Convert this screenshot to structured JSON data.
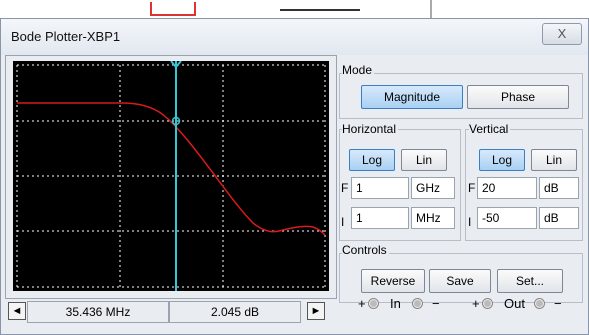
{
  "window": {
    "title": "Bode Plotter-XBP1",
    "close_label": "X"
  },
  "plot": {
    "background": "#000000",
    "curve_color": "#d81b1b",
    "cursor_color": "#35c5d6",
    "grid_color": "#ffffff"
  },
  "readout": {
    "frequency": "35.436 MHz",
    "gain": "2.045 dB",
    "left_arrow": "◄",
    "right_arrow": "►"
  },
  "mode": {
    "label": "Mode",
    "magnitude_label": "Magnitude",
    "phase_label": "Phase",
    "selected": "Magnitude"
  },
  "horizontal": {
    "label": "Horizontal",
    "log_label": "Log",
    "lin_label": "Lin",
    "selected": "Log",
    "final_letter": "F",
    "final_value": "1",
    "final_unit": "GHz",
    "initial_letter": "I",
    "initial_value": "1",
    "initial_unit": "MHz"
  },
  "vertical": {
    "label": "Vertical",
    "log_label": "Log",
    "lin_label": "Lin",
    "selected": "Log",
    "final_letter": "F",
    "final_value": "20",
    "final_unit": "dB",
    "initial_letter": "I",
    "initial_value": "-50",
    "initial_unit": "dB"
  },
  "controls": {
    "label": "Controls",
    "reverse_label": "Reverse",
    "save_label": "Save",
    "set_label": "Set..."
  },
  "terminals": {
    "plus": "+",
    "minus": "−",
    "in_label": "In",
    "out_label": "Out"
  }
}
